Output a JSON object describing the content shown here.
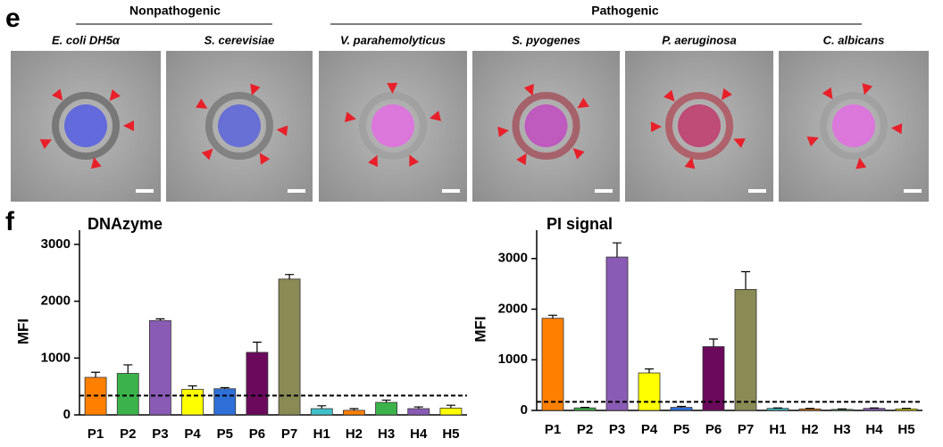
{
  "panel_e": {
    "label": "e",
    "groups": [
      "Nonpathogenic",
      "Pathogenic"
    ],
    "panels": [
      "E. coli DH5α",
      "S. cerevisiae",
      "V. parahemolyticus",
      "S. pyogenes",
      "P. aeruginosa",
      "C. albicans"
    ]
  },
  "panel_f": {
    "label": "f"
  },
  "chart_data": [
    {
      "type": "bar",
      "title": "DNAzyme",
      "y_label": "MFI",
      "categories": [
        "P1",
        "P2",
        "P3",
        "P4",
        "P5",
        "P6",
        "P7",
        "H1",
        "H2",
        "H3",
        "H4",
        "H5"
      ],
      "values": [
        660,
        730,
        1660,
        450,
        460,
        1100,
        2390,
        110,
        80,
        220,
        110,
        120
      ],
      "errors": [
        90,
        150,
        30,
        60,
        20,
        180,
        80,
        50,
        30,
        40,
        30,
        50
      ],
      "colors": [
        "#ff8000",
        "#3cb34a",
        "#8a5bb5",
        "#ffff00",
        "#2e6fd8",
        "#6b0a5c",
        "#8a8a55",
        "#40c0c8",
        "#ff8000",
        "#3cb34a",
        "#8a5bb5",
        "#ffff00"
      ],
      "threshold": 340,
      "ylim": [
        0,
        3250
      ],
      "yticks": [
        0,
        1000,
        2000,
        3000
      ]
    },
    {
      "type": "bar",
      "title": "PI signal",
      "y_label": "MFI",
      "categories": [
        "P1",
        "P2",
        "P3",
        "P4",
        "P5",
        "P6",
        "P7",
        "H1",
        "H2",
        "H3",
        "H4",
        "H5"
      ],
      "values": [
        1820,
        50,
        3030,
        740,
        60,
        1260,
        2390,
        40,
        30,
        20,
        40,
        30
      ],
      "errors": [
        60,
        10,
        280,
        80,
        20,
        150,
        350,
        10,
        10,
        10,
        10,
        10
      ],
      "colors": [
        "#ff8000",
        "#3cb34a",
        "#8a5bb5",
        "#ffff00",
        "#2e6fd8",
        "#6b0a5c",
        "#8a8a55",
        "#40c0c8",
        "#ff8000",
        "#3cb34a",
        "#8a5bb5",
        "#ffff00"
      ],
      "threshold": 170,
      "ylim": [
        0,
        3560
      ],
      "yticks": [
        0,
        1000,
        2000,
        3000
      ]
    }
  ]
}
